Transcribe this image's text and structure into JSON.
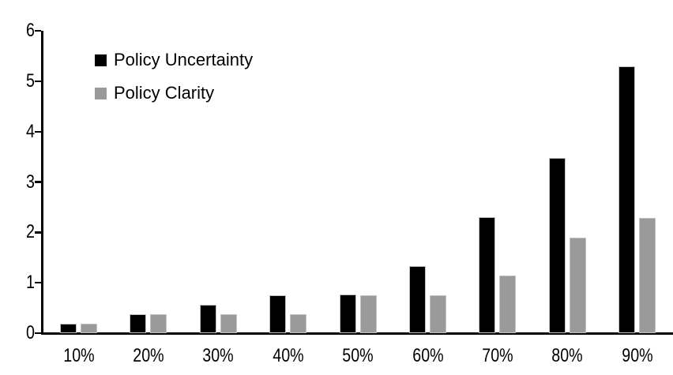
{
  "chart_data": {
    "type": "bar",
    "title": "",
    "categories": [
      "10%",
      "20%",
      "30%",
      "40%",
      "50%",
      "60%",
      "70%",
      "80%",
      "90%"
    ],
    "series": [
      {
        "name": "Policy Uncertainty",
        "color": "#000000",
        "values": [
          0.19,
          0.38,
          0.57,
          0.76,
          0.77,
          1.33,
          2.31,
          3.48,
          5.3
        ]
      },
      {
        "name": "Policy Clarity",
        "color": "#9a9a9a",
        "values": [
          0.19,
          0.37,
          0.37,
          0.38,
          0.76,
          0.76,
          1.14,
          1.89,
          2.29
        ]
      }
    ],
    "xlabel": "",
    "ylabel": "",
    "ylim": [
      0,
      6
    ],
    "yticks": [
      0,
      1,
      2,
      3,
      4,
      5,
      6
    ],
    "grid": false,
    "legend_position": "inside-top-left",
    "axis_color": "#000000",
    "background": "#ffffff"
  }
}
